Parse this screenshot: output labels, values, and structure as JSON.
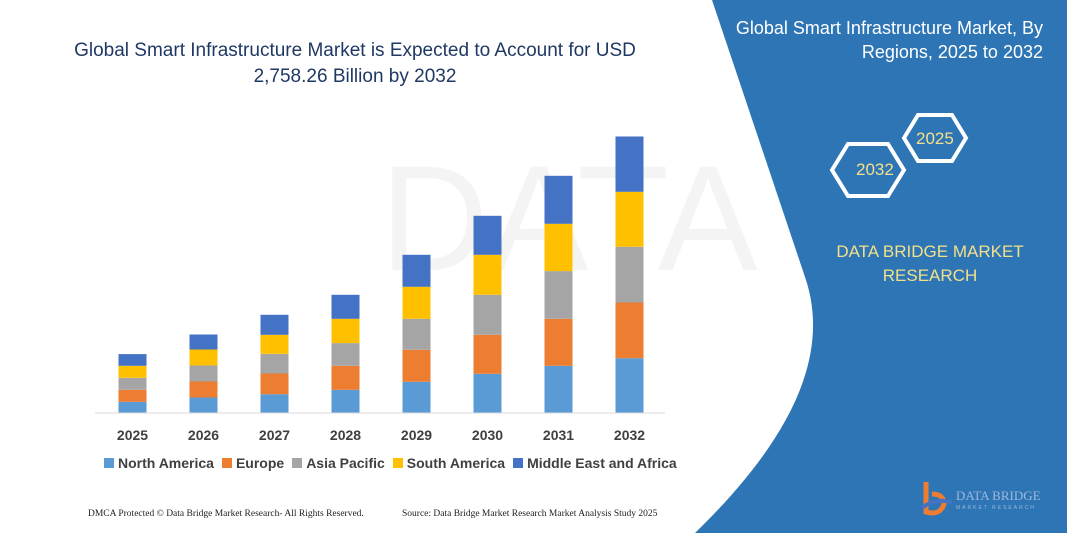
{
  "title": "Global Smart Infrastructure Market is Expected to Account for USD 2,758.26 Billion by 2032",
  "side_panel": {
    "title": "Global Smart Infrastructure Market, By Regions, 2025 to 2032",
    "hex_start": "2025",
    "hex_end": "2032",
    "brand": "DATA BRIDGE MARKET RESEARCH",
    "logo_text": "DATA BRIDGE",
    "logo_subtext": "MARKET RESEARCH"
  },
  "footer": {
    "dmca": "DMCA Protected © Data Bridge Market Research- All Rights Reserved.",
    "source": "Source: Data Bridge Market Research Market Analysis Study 2025"
  },
  "colors": {
    "panel": "#2e75b6",
    "title": "#1f3864",
    "accent": "#f2e08a"
  },
  "chart_data": {
    "type": "bar",
    "stacked": true,
    "title": "Global Smart Infrastructure Market is Expected to Account for USD 2,758.26 Billion by 2032",
    "categories": [
      "2025",
      "2026",
      "2027",
      "2028",
      "2029",
      "2030",
      "2031",
      "2032"
    ],
    "series": [
      {
        "name": "North America",
        "color": "#5b9bd5",
        "values": [
          107,
          150,
          183,
          227,
          307,
          387,
          467,
          543
        ]
      },
      {
        "name": "Europe",
        "color": "#ed7d31",
        "values": [
          120,
          160,
          207,
          240,
          320,
          390,
          470,
          557
        ]
      },
      {
        "name": "Asia Pacific",
        "color": "#a5a5a5",
        "values": [
          120,
          160,
          197,
          227,
          310,
          400,
          477,
          557
        ]
      },
      {
        "name": "South America",
        "color": "#ffc000",
        "values": [
          120,
          160,
          190,
          243,
          320,
          400,
          473,
          550
        ]
      },
      {
        "name": "Middle East and Africa",
        "color": "#4472c4",
        "values": [
          117,
          150,
          200,
          240,
          320,
          390,
          480,
          553
        ]
      }
    ],
    "legend": "bottom",
    "grid": false,
    "y_axis_visible": false,
    "ylim": [
      0,
      2760
    ]
  }
}
